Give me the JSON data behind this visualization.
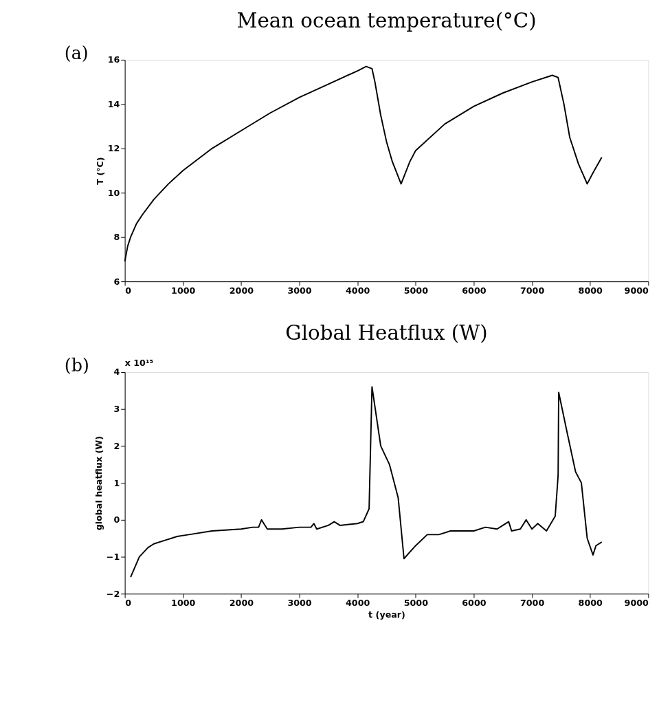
{
  "chart_data": [
    {
      "type": "line",
      "title": "Mean ocean temperature(°C)",
      "ylabel": "T (°C)",
      "annotations": [
        "(a)"
      ],
      "x": [
        0,
        50,
        100,
        200,
        300,
        500,
        750,
        1000,
        1500,
        2000,
        2500,
        3000,
        3500,
        4000,
        4150,
        4250,
        4300,
        4400,
        4500,
        4600,
        4750,
        4900,
        5000,
        5500,
        6000,
        6500,
        7000,
        7350,
        7450,
        7550,
        7650,
        7800,
        7950,
        8050,
        8200
      ],
      "series": [
        {
          "color": "#000000",
          "values": [
            6.9,
            7.6,
            8.0,
            8.6,
            9.0,
            9.7,
            10.4,
            11.0,
            12.0,
            12.8,
            13.6,
            14.3,
            14.9,
            15.5,
            15.7,
            15.6,
            15.0,
            13.5,
            12.3,
            11.4,
            10.4,
            11.4,
            11.9,
            13.1,
            13.9,
            14.5,
            15.0,
            15.3,
            15.2,
            14.0,
            12.5,
            11.3,
            10.4,
            10.9,
            11.6
          ]
        }
      ],
      "xlim": [
        0,
        9000
      ],
      "xticks": [
        0,
        1000,
        2000,
        3000,
        4000,
        5000,
        6000,
        7000,
        8000,
        9000
      ],
      "ylim": [
        6,
        16
      ],
      "yticks": [
        6,
        8,
        10,
        12,
        14,
        16
      ],
      "grid": false,
      "legend": false
    },
    {
      "type": "line",
      "title": "Global Heatflux (W)",
      "xlabel": "t (year)",
      "ylabel": "global heatflux (W)",
      "annotations": [
        "(b)",
        "x 10¹⁵"
      ],
      "x": [
        100,
        250,
        400,
        500,
        700,
        900,
        1100,
        1500,
        2000,
        2200,
        2300,
        2350,
        2450,
        2700,
        3000,
        3200,
        3250,
        3300,
        3500,
        3600,
        3700,
        4000,
        4100,
        4200,
        4250,
        4400,
        4550,
        4700,
        4800,
        5000,
        5200,
        5400,
        5600,
        5800,
        6000,
        6200,
        6400,
        6500,
        6600,
        6650,
        6800,
        6900,
        7000,
        7100,
        7250,
        7400,
        7450,
        7460,
        7600,
        7750,
        7850,
        7950,
        8050,
        8100,
        8200
      ],
      "series": [
        {
          "color": "#000000",
          "values": [
            -1.55,
            -1.0,
            -0.75,
            -0.65,
            -0.55,
            -0.45,
            -0.4,
            -0.3,
            -0.25,
            -0.2,
            -0.2,
            0.0,
            -0.25,
            -0.25,
            -0.2,
            -0.2,
            -0.1,
            -0.25,
            -0.15,
            -0.05,
            -0.15,
            -0.1,
            -0.05,
            0.3,
            3.6,
            2.0,
            1.5,
            0.6,
            -1.05,
            -0.7,
            -0.4,
            -0.4,
            -0.3,
            -0.3,
            -0.3,
            -0.2,
            -0.25,
            -0.15,
            -0.05,
            -0.3,
            -0.25,
            0.0,
            -0.25,
            -0.1,
            -0.3,
            0.1,
            1.2,
            3.45,
            2.4,
            1.3,
            1.0,
            -0.5,
            -0.95,
            -0.7,
            -0.6
          ]
        }
      ],
      "xlim": [
        0,
        9000
      ],
      "xticks": [
        0,
        1000,
        2000,
        3000,
        4000,
        5000,
        6000,
        7000,
        8000,
        9000
      ],
      "ylim": [
        -2,
        4
      ],
      "yticks": [
        -2,
        -1,
        0,
        1,
        2,
        3,
        4
      ],
      "grid": false,
      "legend": false
    }
  ]
}
